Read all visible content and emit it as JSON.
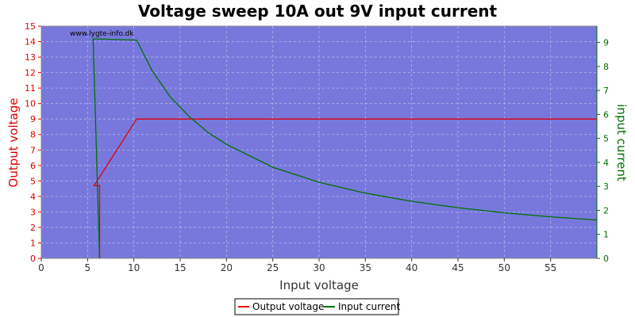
{
  "chart_data": {
    "type": "line",
    "title": "Voltage sweep 10A out 9V input current",
    "xlabel": "Input voltage",
    "ylabel": "Output voltage",
    "y2label": "input current",
    "watermark": "www.lygte-info.dk",
    "xlim": [
      0,
      60
    ],
    "ylim": [
      0,
      15
    ],
    "y2lim": [
      0,
      9.68
    ],
    "xticks": [
      0,
      5,
      10,
      15,
      20,
      25,
      30,
      35,
      40,
      45,
      50,
      55
    ],
    "yticks": [
      0,
      1,
      2,
      3,
      4,
      5,
      6,
      7,
      8,
      9,
      10,
      11,
      12,
      13,
      14,
      15
    ],
    "y2ticks": [
      0,
      1,
      2,
      3,
      4,
      5,
      6,
      7,
      8,
      9
    ],
    "grid": true,
    "legend": "bottom-center",
    "colors": {
      "plot_bg": "#7878dc",
      "output_voltage": "#e00000",
      "input_current": "#007000"
    },
    "series": [
      {
        "name": "Output voltage",
        "axis": "left",
        "x": [
          6.3,
          6.3,
          5.7,
          10.3,
          60
        ],
        "y": [
          0,
          4.7,
          4.7,
          9.0,
          9.0
        ]
      },
      {
        "name": "Input current",
        "axis": "right",
        "x": [
          6.3,
          5.6,
          5.6,
          10.3,
          12,
          14,
          16,
          18,
          20,
          25,
          30,
          35,
          40,
          45,
          50,
          55,
          60
        ],
        "y": [
          0,
          9.15,
          9.15,
          9.1,
          7.8,
          6.7,
          5.9,
          5.25,
          4.75,
          3.8,
          3.17,
          2.72,
          2.38,
          2.11,
          1.9,
          1.73,
          1.6
        ]
      }
    ]
  }
}
